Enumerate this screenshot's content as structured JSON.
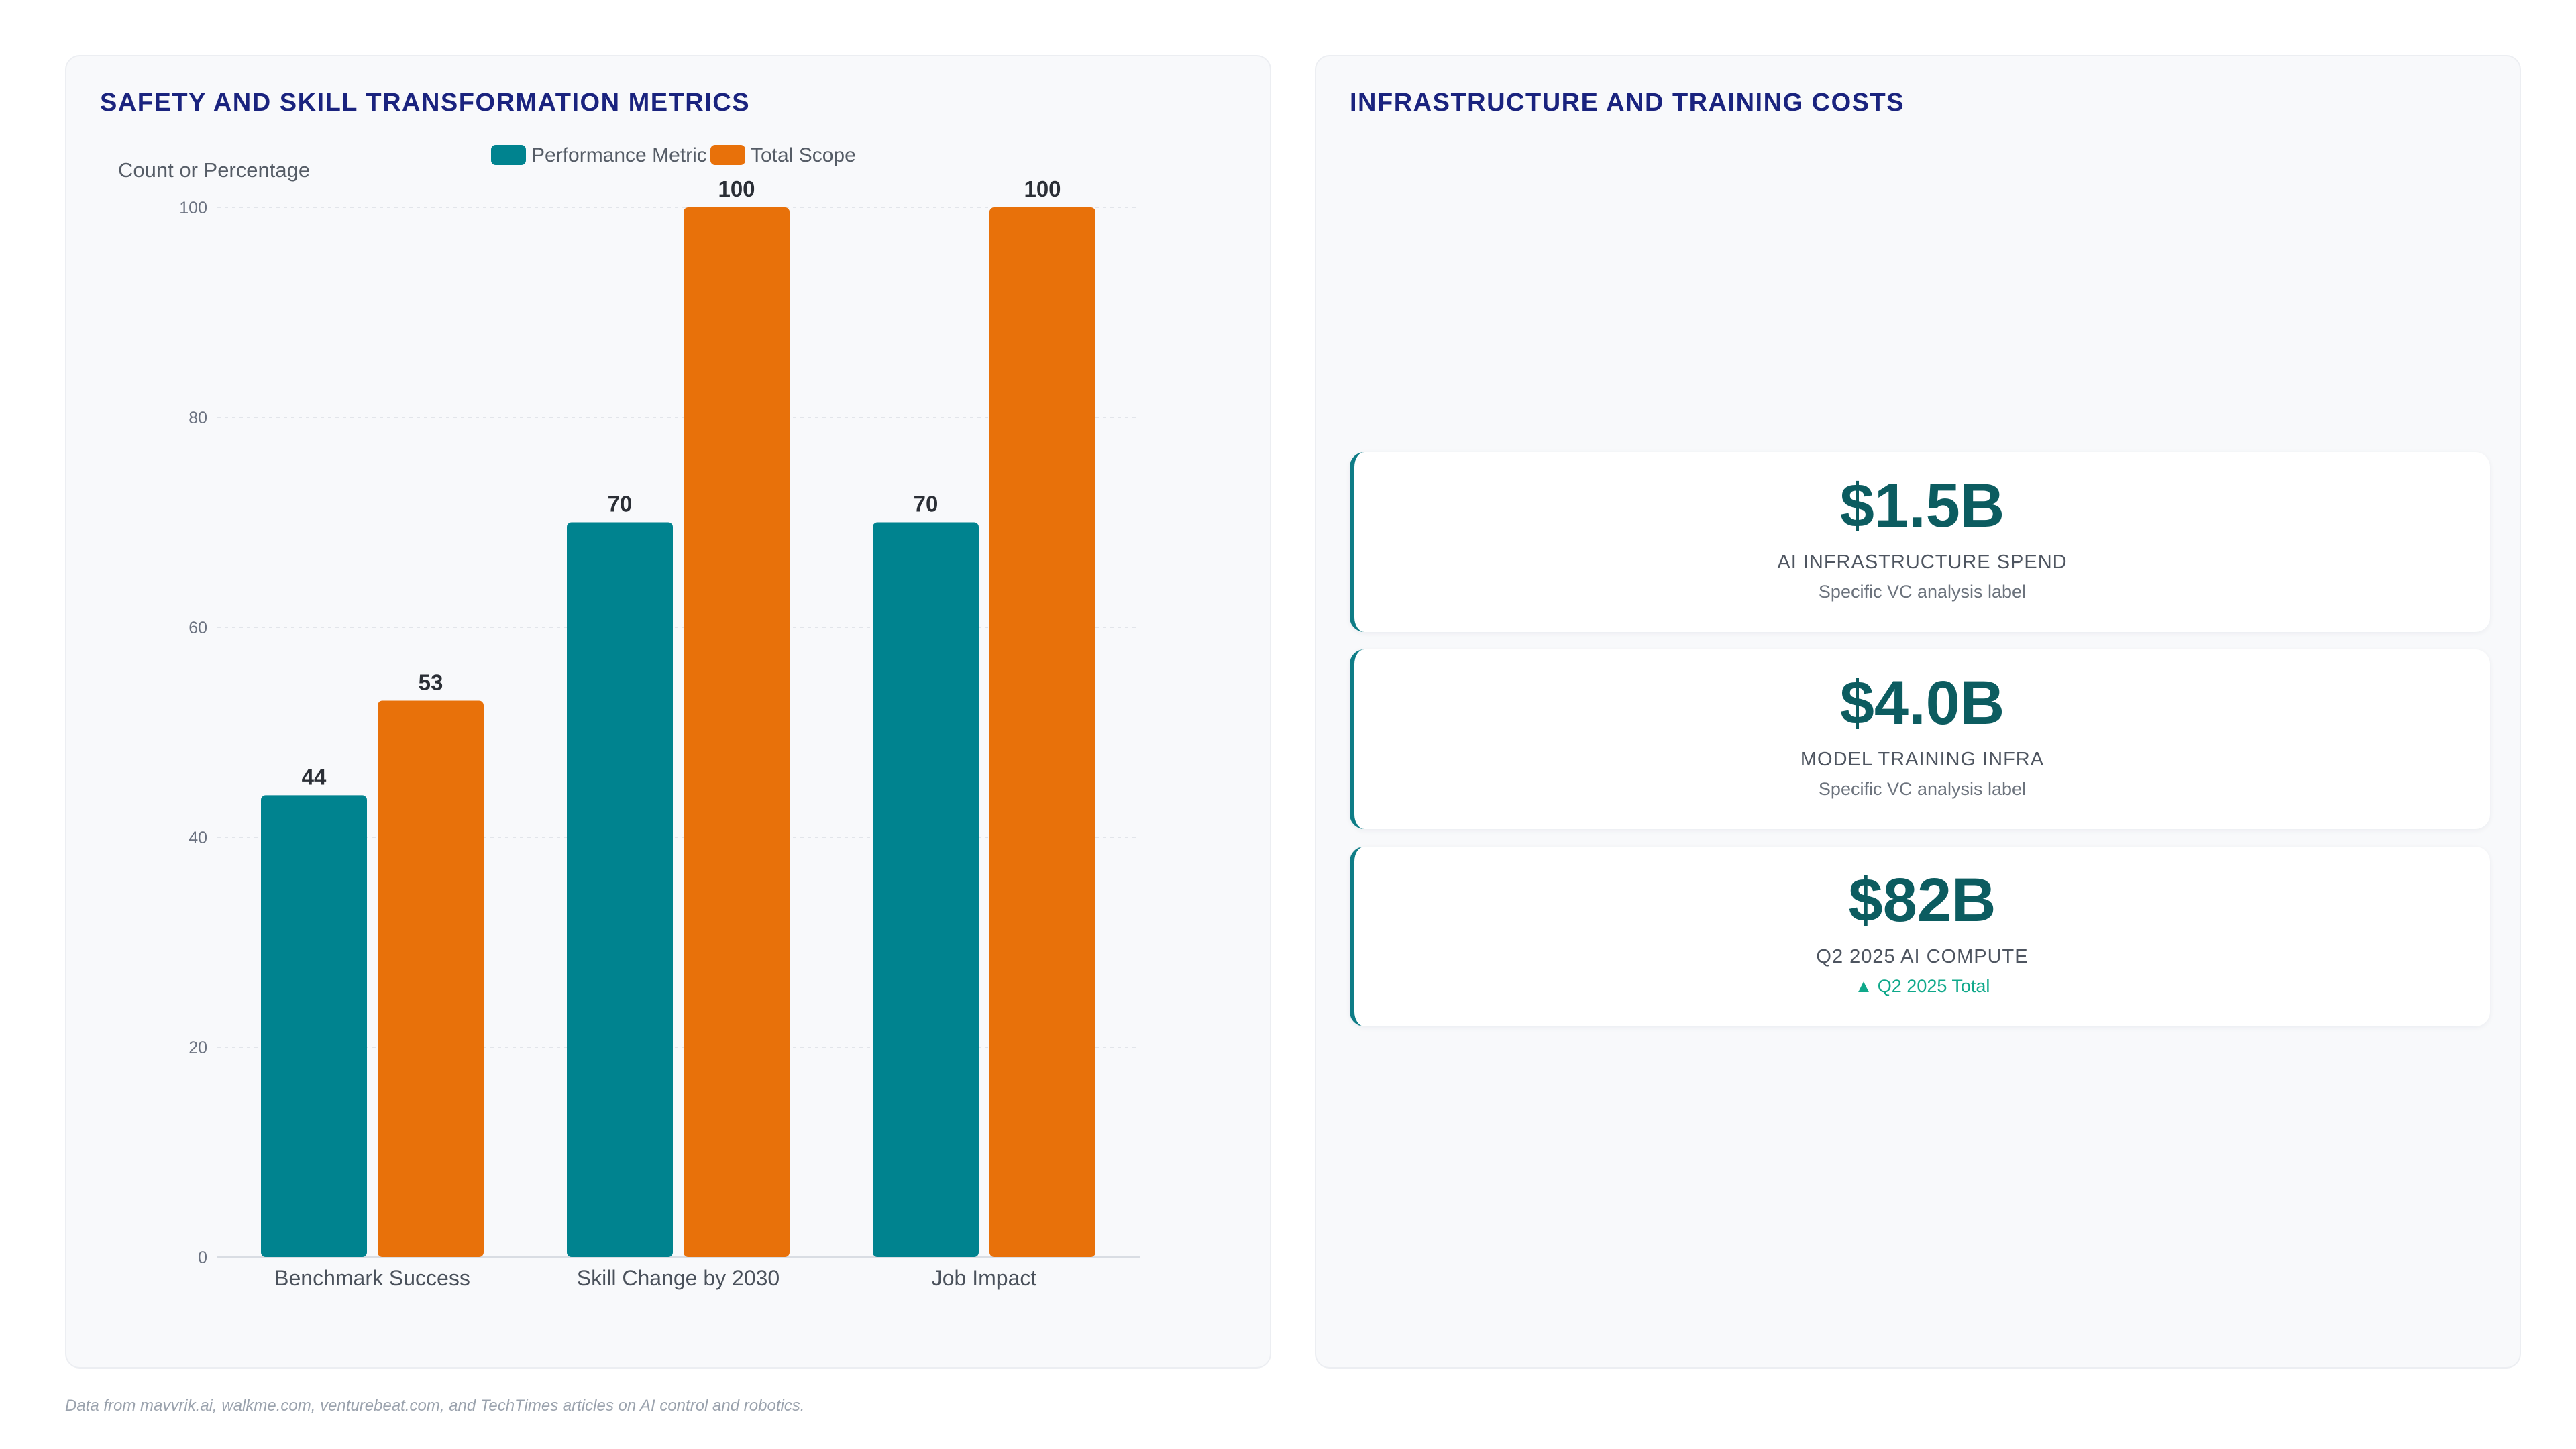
{
  "left_panel": {
    "title": "SAFETY AND SKILL TRANSFORMATION METRICS"
  },
  "right_panel": {
    "title": "INFRASTRUCTURE AND TRAINING COSTS"
  },
  "chart_data": {
    "type": "bar",
    "title": "SAFETY AND SKILL TRANSFORMATION METRICS",
    "categories": [
      "Benchmark Success",
      "Skill Change by 2030",
      "Job Impact"
    ],
    "series": [
      {
        "name": "Performance Metric",
        "values": [
          44,
          70,
          70
        ],
        "color": "#00838f"
      },
      {
        "name": "Total Scope",
        "values": [
          53,
          100,
          100
        ],
        "color": "#e8710a"
      }
    ],
    "xlabel": "",
    "ylabel": "Count or Percentage",
    "ylim": [
      0,
      100
    ],
    "yticks": [
      0,
      20,
      40,
      60,
      80,
      100
    ],
    "grid": true,
    "legend_position": "top"
  },
  "kpis": [
    {
      "value": "$1.5B",
      "label": "AI INFRASTRUCTURE SPEND",
      "sub": "Specific VC analysis label",
      "sub_positive": false
    },
    {
      "value": "$4.0B",
      "label": "MODEL TRAINING INFRA",
      "sub": "Specific VC analysis label",
      "sub_positive": false
    },
    {
      "value": "$82B",
      "label": "Q2 2025 AI COMPUTE",
      "sub": "▲ Q2 2025 Total",
      "sub_positive": true
    }
  ],
  "footnote": "Data from mavvrik.ai, walkme.com, venturebeat.com, and TechTimes articles on AI control and robotics.",
  "colors": {
    "title": "#1a237e",
    "kpi_value": "#0c5c60",
    "kpi_accent": "#0e7c86",
    "positive": "#0fa88a"
  }
}
